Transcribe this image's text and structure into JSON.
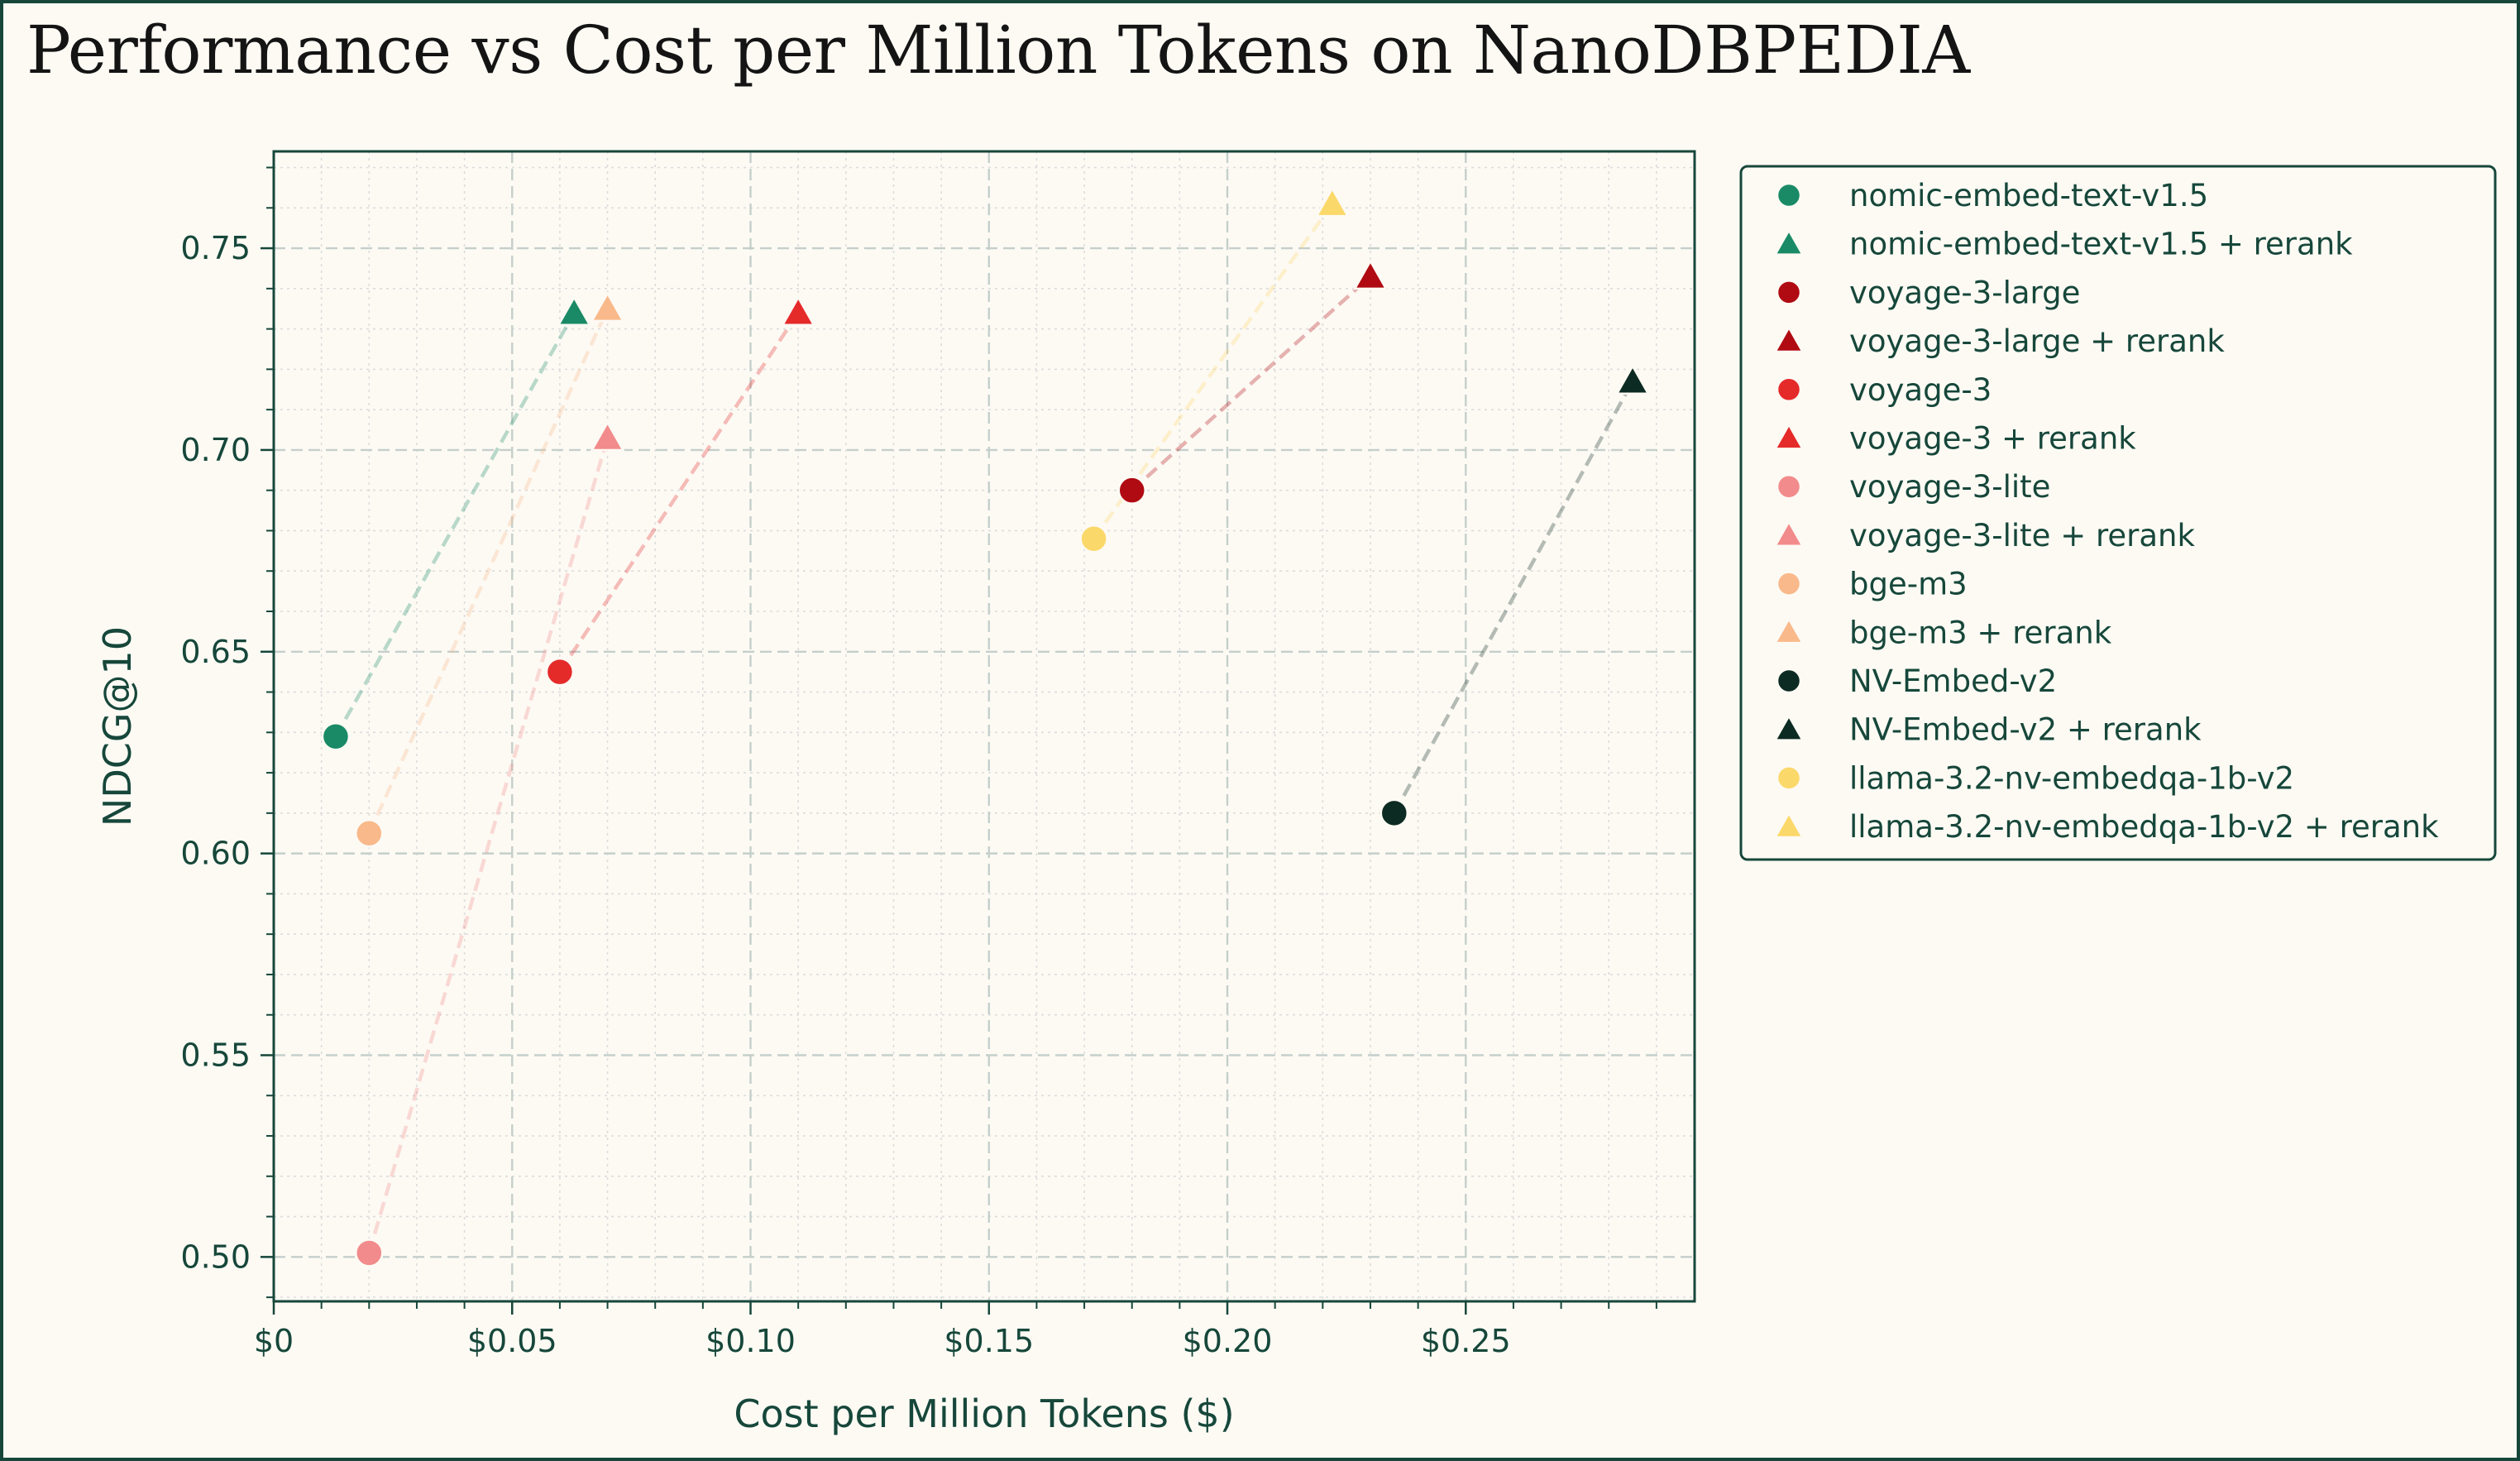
{
  "chart_data": {
    "type": "scatter",
    "title": "Performance vs Cost per Million Tokens on NanoDBPEDIA",
    "xlabel": "Cost per Million Tokens ($)",
    "ylabel": "NDCG@10",
    "xlim": [
      0,
      0.298
    ],
    "ylim": [
      0.489,
      0.774
    ],
    "x_ticks": [
      0,
      0.05,
      0.1,
      0.15,
      0.2,
      0.25
    ],
    "x_tick_labels": [
      "$0",
      "$0.05",
      "$0.10",
      "$0.15",
      "$0.20",
      "$0.25"
    ],
    "y_ticks": [
      0.5,
      0.55,
      0.6,
      0.65,
      0.7,
      0.75
    ],
    "y_tick_labels": [
      "0.50",
      "0.55",
      "0.60",
      "0.65",
      "0.70",
      "0.75"
    ],
    "grid": true,
    "legend_position": "outside-right",
    "series": [
      {
        "name": "nomic-embed-text-v1.5",
        "marker": "circle",
        "color": "#1a8a66",
        "x": 0.013,
        "y": 0.629
      },
      {
        "name": "nomic-embed-text-v1.5 + rerank",
        "marker": "triangle",
        "color": "#1a8a66",
        "x": 0.063,
        "y": 0.734
      },
      {
        "name": "voyage-3-large",
        "marker": "circle",
        "color": "#b00b12",
        "x": 0.18,
        "y": 0.69
      },
      {
        "name": "voyage-3-large + rerank",
        "marker": "triangle",
        "color": "#b00b12",
        "x": 0.23,
        "y": 0.743
      },
      {
        "name": "voyage-3",
        "marker": "circle",
        "color": "#e52a2a",
        "x": 0.06,
        "y": 0.645
      },
      {
        "name": "voyage-3 + rerank",
        "marker": "triangle",
        "color": "#e52a2a",
        "x": 0.11,
        "y": 0.734
      },
      {
        "name": "voyage-3-lite",
        "marker": "circle",
        "color": "#f28b8b",
        "x": 0.02,
        "y": 0.501
      },
      {
        "name": "voyage-3-lite + rerank",
        "marker": "triangle",
        "color": "#f28b8b",
        "x": 0.07,
        "y": 0.703
      },
      {
        "name": "bge-m3",
        "marker": "circle",
        "color": "#f9b98a",
        "x": 0.02,
        "y": 0.605
      },
      {
        "name": "bge-m3 + rerank",
        "marker": "triangle",
        "color": "#f9b98a",
        "x": 0.07,
        "y": 0.735
      },
      {
        "name": "NV-Embed-v2",
        "marker": "circle",
        "color": "#0c2b22",
        "x": 0.235,
        "y": 0.61
      },
      {
        "name": "NV-Embed-v2 + rerank",
        "marker": "triangle",
        "color": "#0c2b22",
        "x": 0.285,
        "y": 0.717
      },
      {
        "name": "llama-3.2-nv-embedqa-1b-v2",
        "marker": "circle",
        "color": "#fbd86a",
        "x": 0.172,
        "y": 0.678
      },
      {
        "name": "llama-3.2-nv-embedqa-1b-v2 + rerank",
        "marker": "triangle",
        "color": "#fbd86a",
        "x": 0.222,
        "y": 0.761
      }
    ],
    "connectors": [
      {
        "from": 0,
        "to": 1
      },
      {
        "from": 2,
        "to": 3
      },
      {
        "from": 4,
        "to": 5
      },
      {
        "from": 6,
        "to": 7
      },
      {
        "from": 8,
        "to": 9
      },
      {
        "from": 10,
        "to": 11
      },
      {
        "from": 12,
        "to": 13
      }
    ]
  }
}
